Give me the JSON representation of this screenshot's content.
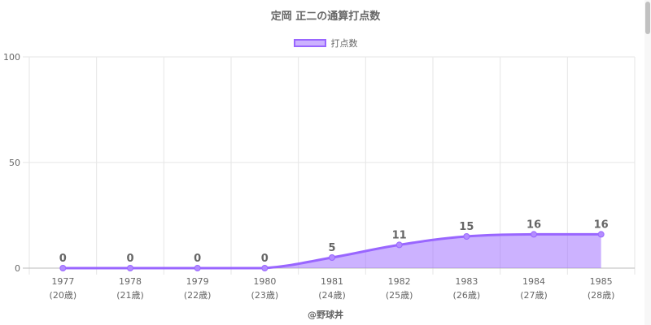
{
  "chart_data": {
    "type": "area",
    "title": "定岡 正二の通算打点数",
    "categories": [
      "1977",
      "1978",
      "1979",
      "1980",
      "1981",
      "1982",
      "1983",
      "1984",
      "1985"
    ],
    "sublabels": [
      "(20歳)",
      "(21歳)",
      "(22歳)",
      "(23歳)",
      "(24歳)",
      "(25歳)",
      "(26歳)",
      "(27歳)",
      "(28歳)"
    ],
    "series": [
      {
        "name": "打点数",
        "values": [
          0,
          0,
          0,
          0,
          5,
          11,
          15,
          16,
          16
        ]
      }
    ],
    "ylim": [
      0,
      100
    ],
    "yticks": [
      0,
      50,
      100
    ],
    "grid": true,
    "legend": "top-center",
    "colors": {
      "line": "#9966ff",
      "fill": "rgba(153,102,255,0.5)",
      "grid": "#e6e6e6"
    }
  },
  "footer": "@野球丼"
}
